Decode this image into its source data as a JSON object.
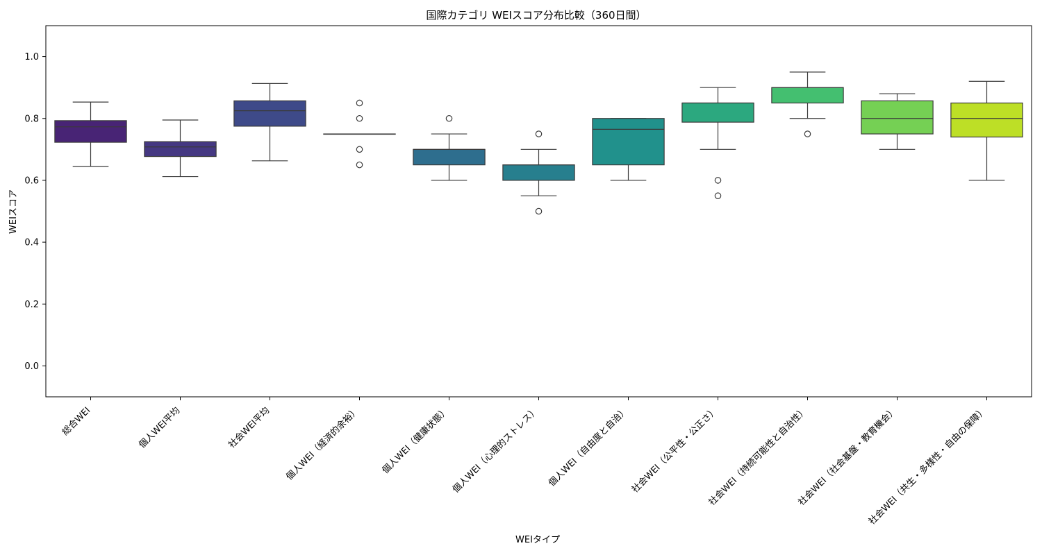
{
  "chart_data": {
    "type": "box",
    "title": "国際カテゴリ WEIスコア分布比較（360日間）",
    "xlabel": "WEIタイプ",
    "ylabel": "WEIスコア",
    "ylim": [
      -0.1,
      1.1
    ],
    "yticks": [
      0.0,
      0.2,
      0.4,
      0.6,
      0.8,
      1.0
    ],
    "ytick_labels": [
      "0.0",
      "0.2",
      "0.4",
      "0.6",
      "0.8",
      "1.0"
    ],
    "categories": [
      "総合WEI",
      "個人WEI平均",
      "社会WEI平均",
      "個人WEI（経済的余裕）",
      "個人WEI（健康状態）",
      "個人WEI（心理的ストレス）",
      "個人WEI（自由度と自治）",
      "社会WEI（公平性・公正さ）",
      "社会WEI（持続可能性と自治性）",
      "社会WEI（社会基盤・教育機会）",
      "社会WEI（共生・多様性・自由の保障）"
    ],
    "boxes": [
      {
        "whisker_low": 0.645,
        "q1": 0.723,
        "median": 0.773,
        "q3": 0.793,
        "whisker_high": 0.853,
        "outliers": []
      },
      {
        "whisker_low": 0.612,
        "q1": 0.677,
        "median": 0.708,
        "q3": 0.725,
        "whisker_high": 0.795,
        "outliers": []
      },
      {
        "whisker_low": 0.663,
        "q1": 0.775,
        "median": 0.825,
        "q3": 0.857,
        "whisker_high": 0.913,
        "outliers": []
      },
      {
        "whisker_low": 0.75,
        "q1": 0.75,
        "median": 0.75,
        "q3": 0.75,
        "whisker_high": 0.75,
        "outliers": [
          0.85,
          0.8,
          0.7,
          0.65
        ]
      },
      {
        "whisker_low": 0.6,
        "q1": 0.65,
        "median": 0.7,
        "q3": 0.7,
        "whisker_high": 0.75,
        "outliers": [
          0.8
        ]
      },
      {
        "whisker_low": 0.55,
        "q1": 0.6,
        "median": 0.65,
        "q3": 0.65,
        "whisker_high": 0.7,
        "outliers": [
          0.75,
          0.5
        ]
      },
      {
        "whisker_low": 0.6,
        "q1": 0.65,
        "median": 0.765,
        "q3": 0.8,
        "whisker_high": 0.8,
        "outliers": []
      },
      {
        "whisker_low": 0.7,
        "q1": 0.788,
        "median": 0.85,
        "q3": 0.85,
        "whisker_high": 0.9,
        "outliers": [
          0.6,
          0.55
        ]
      },
      {
        "whisker_low": 0.8,
        "q1": 0.85,
        "median": 0.9,
        "q3": 0.9,
        "whisker_high": 0.95,
        "outliers": [
          0.75
        ]
      },
      {
        "whisker_low": 0.7,
        "q1": 0.75,
        "median": 0.8,
        "q3": 0.857,
        "whisker_high": 0.88,
        "outliers": []
      },
      {
        "whisker_low": 0.6,
        "q1": 0.74,
        "median": 0.8,
        "q3": 0.85,
        "whisker_high": 0.92,
        "outliers": []
      }
    ],
    "colors": [
      "#482475",
      "#453882",
      "#3e4a89",
      "#355f8d",
      "#2e6e8e",
      "#277f8e",
      "#21918c",
      "#2ca87f",
      "#44bf70",
      "#75d054",
      "#bddf26"
    ],
    "grid": false,
    "legend": "none"
  }
}
